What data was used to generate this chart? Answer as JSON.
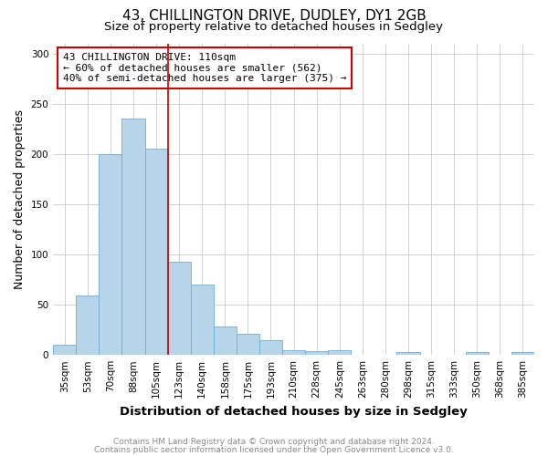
{
  "title1": "43, CHILLINGTON DRIVE, DUDLEY, DY1 2GB",
  "title2": "Size of property relative to detached houses in Sedgley",
  "xlabel": "Distribution of detached houses by size in Sedgley",
  "ylabel": "Number of detached properties",
  "categories": [
    "35sqm",
    "53sqm",
    "70sqm",
    "88sqm",
    "105sqm",
    "123sqm",
    "140sqm",
    "158sqm",
    "175sqm",
    "193sqm",
    "210sqm",
    "228sqm",
    "245sqm",
    "263sqm",
    "280sqm",
    "298sqm",
    "315sqm",
    "333sqm",
    "350sqm",
    "368sqm",
    "385sqm"
  ],
  "values": [
    10,
    59,
    200,
    235,
    205,
    93,
    70,
    28,
    21,
    15,
    5,
    4,
    5,
    0,
    0,
    3,
    0,
    0,
    3,
    0,
    3
  ],
  "bar_color": "#b8d4e8",
  "bar_edge_color": "#6baed6",
  "red_line_x": 4.5,
  "red_line_color": "#cc0000",
  "annotation_text": "43 CHILLINGTON DRIVE: 110sqm\n← 60% of detached houses are smaller (562)\n40% of semi-detached houses are larger (375) →",
  "annotation_box_color": "#ffffff",
  "annotation_box_edge": "#cc0000",
  "ylim": [
    0,
    310
  ],
  "yticks": [
    0,
    50,
    100,
    150,
    200,
    250,
    300
  ],
  "footnote1": "Contains HM Land Registry data © Crown copyright and database right 2024.",
  "footnote2": "Contains public sector information licensed under the Open Government Licence v3.0.",
  "background_color": "#ffffff",
  "grid_color": "#d0d0d0",
  "title_fontsize": 11,
  "subtitle_fontsize": 9.5,
  "tick_fontsize": 7.5,
  "ylabel_fontsize": 9,
  "xlabel_fontsize": 9.5,
  "footnote_fontsize": 6.5,
  "annot_fontsize": 8
}
